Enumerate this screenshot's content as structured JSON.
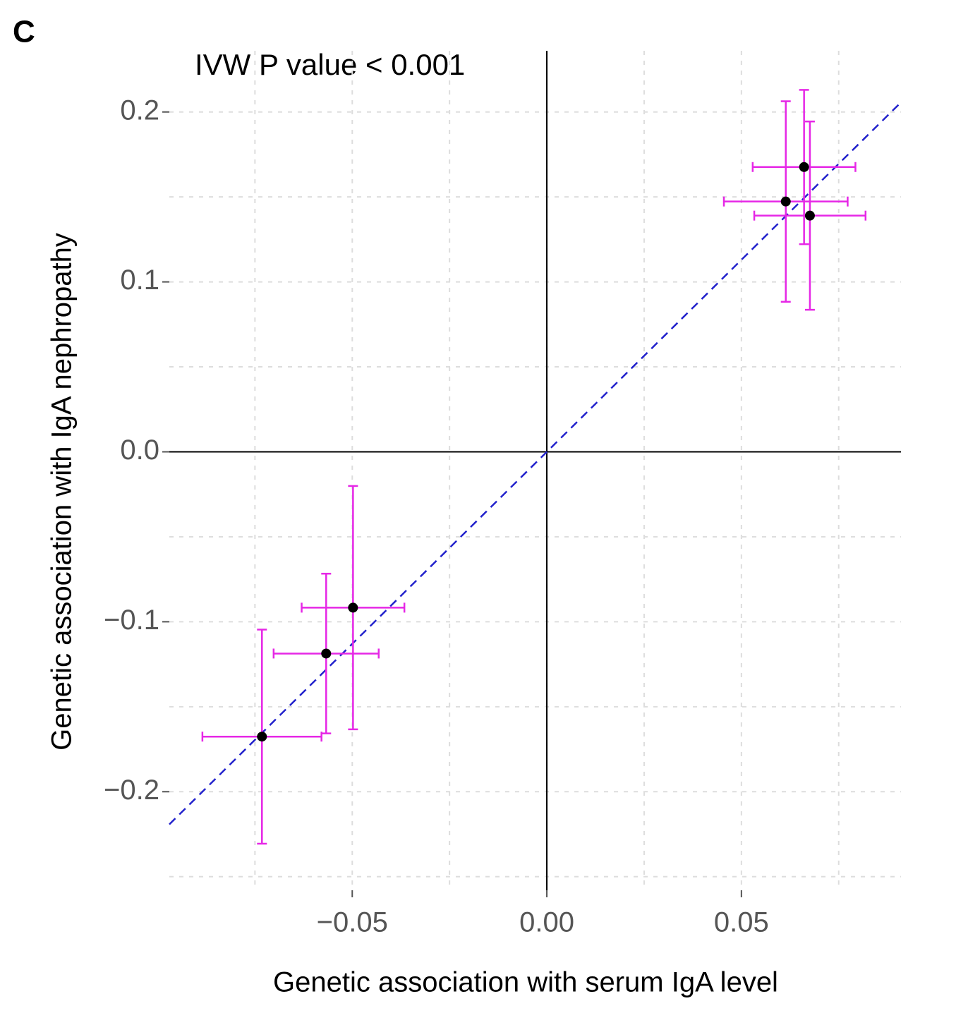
{
  "chart_data": {
    "type": "scatter",
    "panel_label": "C",
    "annotation": "IVW P value < 0.001",
    "xlabel": "Genetic association with serum IgA level",
    "ylabel": "Genetic association with IgA nephropathy",
    "x": [
      0.0661,
      0.0614,
      0.0676,
      -0.0498,
      -0.0567,
      -0.0732
    ],
    "values": [
      0.1676,
      0.1473,
      0.139,
      -0.0917,
      -0.1187,
      -0.1676
    ],
    "xerr": [
      0.0132,
      0.0159,
      0.0143,
      0.0132,
      0.0135,
      0.0153
    ],
    "yerr": [
      0.0454,
      0.059,
      0.0554,
      0.0716,
      0.047,
      0.063
    ],
    "color": "#000000",
    "error_color": "#e627e6",
    "fit": {
      "slope": 2.26,
      "color": "#2222cc"
    },
    "xlim": [
      -0.097,
      0.091
    ],
    "ylim": [
      -0.258,
      0.236
    ],
    "xticks": [
      {
        "value": -0.05,
        "label": "−0.05"
      },
      {
        "value": 0,
        "label": "0.00"
      },
      {
        "value": 0.05,
        "label": "0.05"
      }
    ],
    "yticks": [
      {
        "value": -0.2,
        "label": "−0.2"
      },
      {
        "value": -0.1,
        "label": "−0.1"
      },
      {
        "value": 0,
        "label": "0.0"
      },
      0.1,
      0.2
    ],
    "xminor": [
      -0.075,
      -0.025,
      0.025,
      0.075
    ],
    "yminor": [
      -0.25,
      -0.15,
      -0.05,
      0.05,
      0.15
    ],
    "grid": true
  }
}
